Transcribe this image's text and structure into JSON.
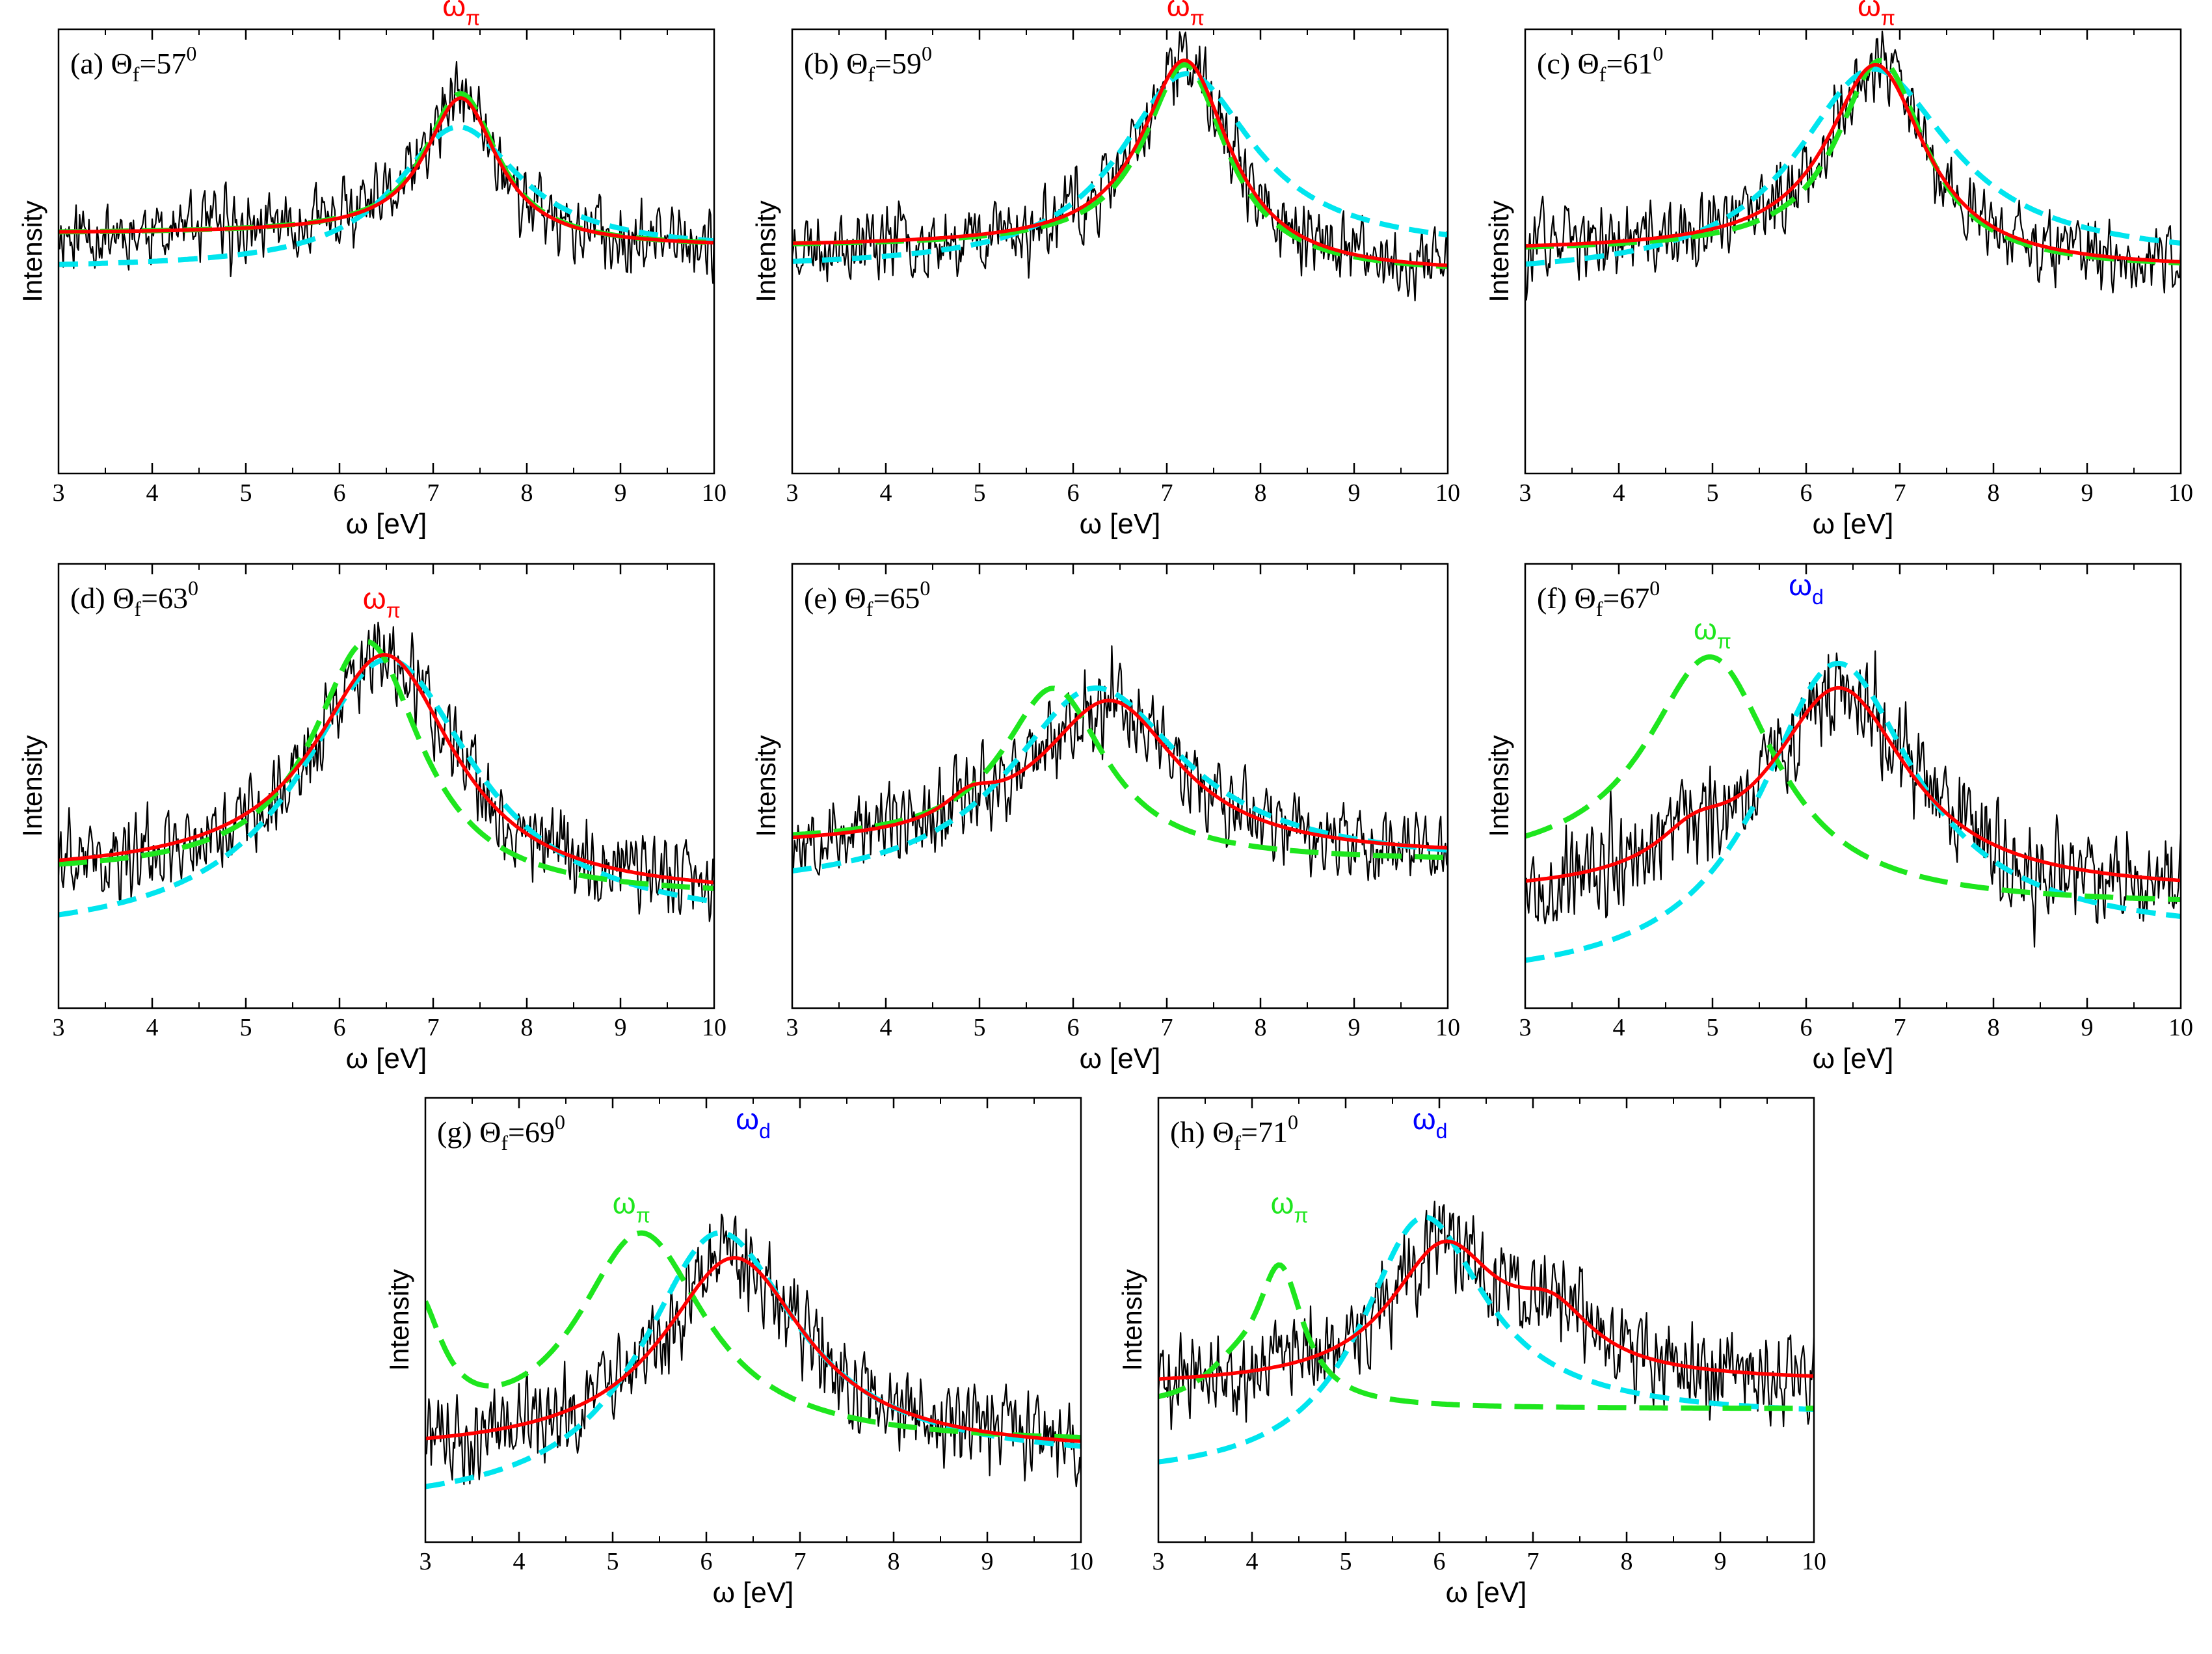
{
  "figure": {
    "xlabel": "ω [eV]",
    "ylabel": "Intensity",
    "xticks": [
      "3",
      "4",
      "5",
      "6",
      "7",
      "8",
      "9",
      "10"
    ],
    "xlim": [
      3,
      10
    ],
    "ylim": [
      0,
      1
    ],
    "colors": {
      "data": "#000000",
      "red_curve": "#ff0000",
      "cyan_curve": "#00e5ee",
      "green_curve": "#1ee61e",
      "label_pi_red": "#ff0000",
      "label_pi_green": "#1ee61e",
      "label_d": "#0000ff",
      "axis": "#000000"
    }
  },
  "chart_data": [
    {
      "id": "a",
      "type": "line",
      "title": "(a) Θf=57⁰",
      "title_parts": {
        "prefix": "(a) Θ",
        "sub": "f",
        "value": "=57",
        "sup": "0"
      },
      "xlim": [
        3,
        10
      ],
      "ylim": [
        0,
        1
      ],
      "noise_seed": 11,
      "noise_amp": 0.07,
      "series": [
        {
          "name": "red",
          "style": "solid",
          "shape": {
            "base": 0.54,
            "tail": 0.51,
            "peaks": [
              {
                "center": 7.3,
                "height": 0.32,
                "width": 0.7
              }
            ]
          }
        },
        {
          "name": "cyan",
          "style": "dashed",
          "shape": {
            "base": 0.46,
            "tail": 0.5,
            "peaks": [
              {
                "center": 7.25,
                "height": 0.3,
                "width": 1.2
              }
            ]
          }
        },
        {
          "name": "green",
          "style": "dashed",
          "shape": {
            "base": 0.54,
            "tail": 0.51,
            "peaks": [
              {
                "center": 7.3,
                "height": 0.33,
                "width": 0.7
              }
            ]
          }
        }
      ],
      "annotations": [
        {
          "text": "ω",
          "sub": "π",
          "x": 7.3,
          "y": 1.03,
          "color": "red"
        }
      ]
    },
    {
      "id": "b",
      "type": "line",
      "title": "(b) Θf=59⁰",
      "title_parts": {
        "prefix": "(b) Θ",
        "sub": "f",
        "value": "=59",
        "sup": "0"
      },
      "xlim": [
        3,
        10
      ],
      "ylim": [
        0,
        1
      ],
      "noise_seed": 23,
      "noise_amp": 0.07,
      "series": [
        {
          "name": "red",
          "style": "solid",
          "shape": {
            "base": 0.51,
            "tail": 0.45,
            "peaks": [
              {
                "center": 7.2,
                "height": 0.45,
                "width": 0.85
              }
            ]
          }
        },
        {
          "name": "cyan",
          "style": "dashed",
          "shape": {
            "base": 0.46,
            "tail": 0.5,
            "peaks": [
              {
                "center": 7.2,
                "height": 0.42,
                "width": 1.3
              }
            ]
          }
        },
        {
          "name": "green",
          "style": "dashed",
          "shape": {
            "base": 0.51,
            "tail": 0.45,
            "peaks": [
              {
                "center": 7.2,
                "height": 0.44,
                "width": 0.8
              }
            ]
          }
        }
      ],
      "annotations": [
        {
          "text": "ω",
          "sub": "π",
          "x": 7.2,
          "y": 1.03,
          "color": "red"
        }
      ]
    },
    {
      "id": "c",
      "type": "line",
      "title": "(c) Θf=61⁰",
      "title_parts": {
        "prefix": "(c) Θ",
        "sub": "f",
        "value": "=61",
        "sup": "0"
      },
      "xlim": [
        3,
        10
      ],
      "ylim": [
        0,
        1
      ],
      "noise_seed": 37,
      "noise_amp": 0.07,
      "series": [
        {
          "name": "red",
          "style": "solid",
          "shape": {
            "base": 0.5,
            "tail": 0.46,
            "peaks": [
              {
                "center": 6.75,
                "height": 0.44,
                "width": 0.95
              }
            ]
          }
        },
        {
          "name": "cyan",
          "style": "dashed",
          "shape": {
            "base": 0.44,
            "tail": 0.48,
            "peaks": [
              {
                "center": 6.7,
                "height": 0.45,
                "width": 1.5
              }
            ]
          }
        },
        {
          "name": "green",
          "style": "dashed",
          "shape": {
            "base": 0.5,
            "tail": 0.46,
            "peaks": [
              {
                "center": 6.8,
                "height": 0.45,
                "width": 0.85
              }
            ]
          }
        }
      ],
      "annotations": [
        {
          "text": "ω",
          "sub": "π",
          "x": 6.75,
          "y": 1.03,
          "color": "red"
        }
      ]
    },
    {
      "id": "d",
      "type": "line",
      "title": "(d) Θf=63⁰",
      "title_parts": {
        "prefix": "(d) Θ",
        "sub": "f",
        "value": "=63",
        "sup": "0"
      },
      "xlim": [
        3,
        10
      ],
      "ylim": [
        0,
        1
      ],
      "noise_seed": 41,
      "noise_amp": 0.08,
      "series": [
        {
          "name": "red",
          "style": "solid",
          "shape": {
            "base": 0.3,
            "tail": 0.25,
            "peaks": [
              {
                "center": 6.5,
                "height": 0.52,
                "width": 1.35
              }
            ]
          }
        },
        {
          "name": "cyan",
          "style": "dashed",
          "shape": {
            "base": 0.15,
            "tail": 0.18,
            "peaks": [
              {
                "center": 6.5,
                "height": 0.62,
                "width": 1.7
              }
            ]
          }
        },
        {
          "name": "green",
          "style": "dashed",
          "shape": {
            "base": 0.3,
            "tail": 0.25,
            "peaks": [
              {
                "center": 6.3,
                "height": 0.55,
                "width": 1.05
              }
            ]
          }
        }
      ],
      "annotations": [
        {
          "text": "ω",
          "sub": "π",
          "x": 6.45,
          "y": 0.9,
          "color": "red"
        }
      ]
    },
    {
      "id": "e",
      "type": "line",
      "title": "(e) Θf=65⁰",
      "title_parts": {
        "prefix": "(e) Θ",
        "sub": "f",
        "value": "=65",
        "sup": "0"
      },
      "xlim": [
        3,
        10
      ],
      "ylim": [
        0,
        1
      ],
      "noise_seed": 53,
      "noise_amp": 0.08,
      "series": [
        {
          "name": "red",
          "style": "solid",
          "shape": {
            "base": 0.36,
            "tail": 0.34,
            "peaks": [
              {
                "center": 6.4,
                "height": 0.34,
                "width": 1.35
              },
              {
                "center": 4.9,
                "height": 0.05,
                "width": 0.5
              }
            ]
          }
        },
        {
          "name": "cyan",
          "style": "dashed",
          "shape": {
            "base": 0.26,
            "tail": 0.32,
            "peaks": [
              {
                "center": 6.2,
                "height": 0.43,
                "width": 1.7
              }
            ]
          }
        },
        {
          "name": "green",
          "style": "dashed",
          "shape": {
            "base": 0.37,
            "tail": 0.33,
            "peaks": [
              {
                "center": 5.8,
                "height": 0.37,
                "width": 1.0
              }
            ]
          }
        }
      ],
      "annotations": []
    },
    {
      "id": "f",
      "type": "line",
      "title": "(f) Θf=67⁰",
      "title_parts": {
        "prefix": "(f) Θ",
        "sub": "f",
        "value": "=67",
        "sup": "0"
      },
      "xlim": [
        3,
        10
      ],
      "ylim": [
        0,
        1
      ],
      "noise_seed": 67,
      "noise_amp": 0.09,
      "series": [
        {
          "name": "red",
          "style": "solid",
          "shape": {
            "base": 0.25,
            "tail": 0.26,
            "peaks": [
              {
                "center": 6.35,
                "height": 0.46,
                "width": 1.35
              },
              {
                "center": 4.8,
                "height": 0.07,
                "width": 0.7
              }
            ]
          }
        },
        {
          "name": "cyan",
          "style": "dashed",
          "shape": {
            "base": 0.05,
            "tail": 0.16,
            "peaks": [
              {
                "center": 6.3,
                "height": 0.67,
                "width": 1.5
              }
            ]
          }
        },
        {
          "name": "green",
          "style": "dashed",
          "shape": {
            "base": 0.31,
            "tail": 0.23,
            "peaks": [
              {
                "center": 5.0,
                "height": 0.52,
                "width": 1.25
              }
            ]
          }
        }
      ],
      "annotations": [
        {
          "text": "ω",
          "sub": "d",
          "x": 6.0,
          "y": 0.93,
          "color": "blue"
        },
        {
          "text": "ω",
          "sub": "π",
          "x": 5.0,
          "y": 0.83,
          "color": "green"
        }
      ]
    },
    {
      "id": "g",
      "type": "line",
      "title": "(g) Θf=69⁰",
      "title_parts": {
        "prefix": "(g) Θ",
        "sub": "f",
        "value": "=69",
        "sup": "0"
      },
      "xlim": [
        3,
        10
      ],
      "ylim": [
        0,
        1
      ],
      "noise_seed": 71,
      "noise_amp": 0.09,
      "series": [
        {
          "name": "red",
          "style": "solid",
          "shape": {
            "base": 0.2,
            "tail": 0.2,
            "peaks": [
              {
                "center": 6.3,
                "height": 0.44,
                "width": 1.4
              }
            ]
          }
        },
        {
          "name": "cyan",
          "style": "dashed",
          "shape": {
            "base": 0.07,
            "tail": 0.18,
            "peaks": [
              {
                "center": 6.1,
                "height": 0.57,
                "width": 1.5
              }
            ]
          }
        },
        {
          "name": "green",
          "style": "dashed",
          "shape": {
            "base": 0.2,
            "tail": 0.22,
            "peaks": [
              {
                "center": 5.3,
                "height": 0.48,
                "width": 1.25
              },
              {
                "center": 2.9,
                "height": 0.31,
                "width": 0.5
              }
            ]
          }
        }
      ],
      "annotations": [
        {
          "text": "ω",
          "sub": "d",
          "x": 6.5,
          "y": 0.93,
          "color": "blue"
        },
        {
          "text": "ω",
          "sub": "π",
          "x": 5.2,
          "y": 0.74,
          "color": "green"
        }
      ]
    },
    {
      "id": "h",
      "type": "line",
      "title": "(h) Θf=71⁰",
      "title_parts": {
        "prefix": "(h) Θ",
        "sub": "f",
        "value": "=71",
        "sup": "0"
      },
      "xlim": [
        3,
        10
      ],
      "ylim": [
        0,
        1
      ],
      "noise_seed": 89,
      "noise_amp": 0.09,
      "series": [
        {
          "name": "red",
          "style": "solid",
          "shape": {
            "base": 0.35,
            "tail": 0.36,
            "peaks": [
              {
                "center": 6.05,
                "height": 0.3,
                "width": 1.05
              },
              {
                "center": 7.2,
                "height": 0.12,
                "width": 0.8
              }
            ]
          }
        },
        {
          "name": "cyan",
          "style": "dashed",
          "shape": {
            "base": 0.14,
            "tail": 0.28,
            "peaks": [
              {
                "center": 5.8,
                "height": 0.52,
                "width": 1.2
              }
            ]
          }
        },
        {
          "name": "green",
          "style": "dashed",
          "shape": {
            "base": 0.3,
            "tail": 0.3,
            "peaks": [
              {
                "center": 4.3,
                "height": 0.3,
                "width": 0.45
              },
              {
                "center": 3.8,
                "height": 0.06,
                "width": 0.6
              }
            ]
          }
        }
      ],
      "annotations": [
        {
          "text": "ω",
          "sub": "d",
          "x": 5.9,
          "y": 0.93,
          "color": "blue"
        },
        {
          "text": "ω",
          "sub": "π",
          "x": 4.4,
          "y": 0.74,
          "color": "green"
        }
      ]
    }
  ]
}
